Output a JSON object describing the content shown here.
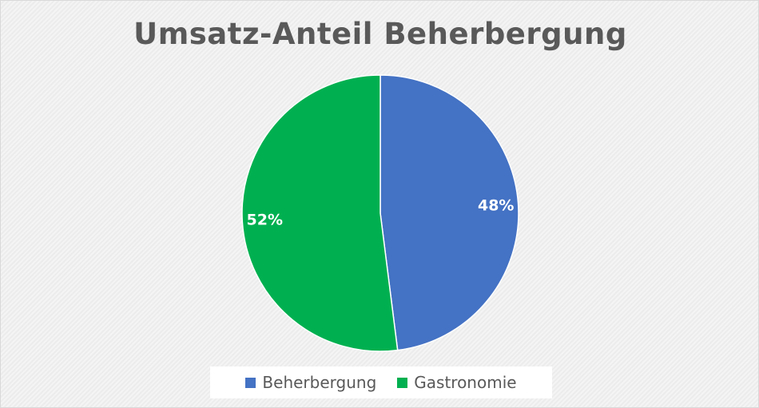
{
  "chart_data": {
    "type": "pie",
    "title": "Umsatz-Anteil Beherbergung",
    "categories": [
      "Beherbergung",
      "Gastronomie"
    ],
    "values": [
      48,
      52
    ],
    "labels": [
      "48%",
      "52%"
    ],
    "colors": [
      "#4472c4",
      "#00b050"
    ],
    "start_angle_deg": 0,
    "direction": "clockwise",
    "legend": "bottom"
  }
}
